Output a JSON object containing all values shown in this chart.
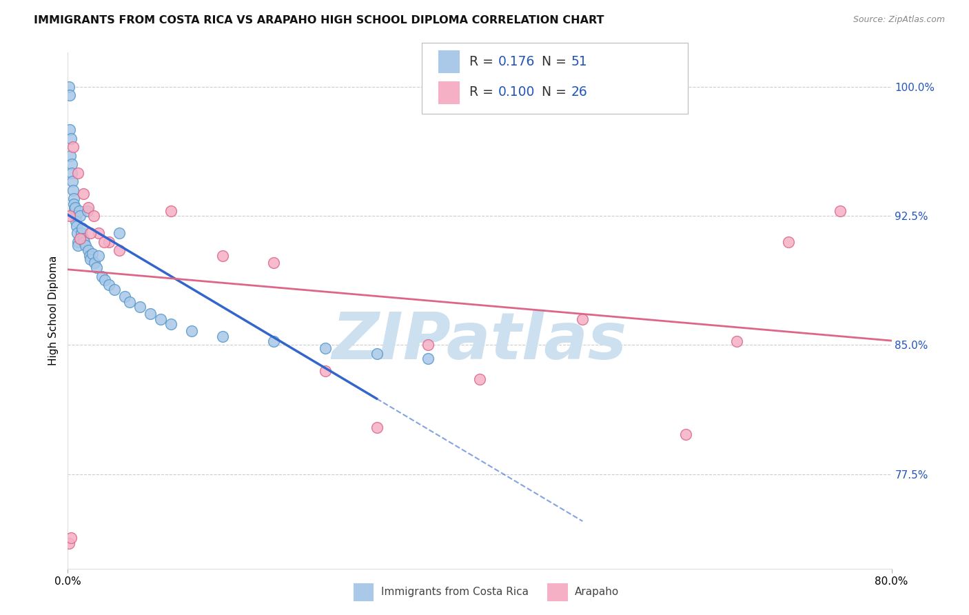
{
  "title": "IMMIGRANTS FROM COSTA RICA VS ARAPAHO HIGH SCHOOL DIPLOMA CORRELATION CHART",
  "source": "Source: ZipAtlas.com",
  "ylabel": "High School Diploma",
  "right_yticks": [
    100.0,
    92.5,
    85.0,
    77.5
  ],
  "xmin": 0.0,
  "xmax": 80.0,
  "ymin": 72.0,
  "ymax": 102.0,
  "blue_r": 0.176,
  "blue_n": 51,
  "pink_r": 0.1,
  "pink_n": 26,
  "blue_x": [
    0.1,
    0.15,
    0.2,
    0.25,
    0.3,
    0.35,
    0.4,
    0.45,
    0.5,
    0.55,
    0.6,
    0.65,
    0.7,
    0.75,
    0.8,
    0.85,
    0.9,
    0.95,
    1.0,
    1.1,
    1.2,
    1.3,
    1.4,
    1.5,
    1.6,
    1.7,
    1.9,
    2.0,
    2.1,
    2.2,
    2.4,
    2.6,
    2.8,
    3.0,
    3.3,
    3.6,
    4.0,
    4.5,
    5.0,
    5.5,
    6.0,
    7.0,
    8.0,
    9.0,
    10.0,
    12.0,
    15.0,
    20.0,
    25.0,
    30.0,
    35.0
  ],
  "blue_y": [
    100.0,
    97.5,
    99.5,
    96.0,
    97.0,
    95.5,
    95.0,
    94.5,
    94.0,
    93.5,
    93.2,
    92.9,
    93.0,
    92.5,
    92.2,
    91.9,
    91.5,
    91.0,
    90.8,
    92.8,
    92.5,
    91.5,
    91.8,
    91.2,
    91.0,
    90.8,
    92.8,
    90.5,
    90.2,
    90.0,
    90.3,
    89.8,
    89.5,
    90.2,
    89.0,
    88.8,
    88.5,
    88.2,
    91.5,
    87.8,
    87.5,
    87.2,
    86.8,
    86.5,
    86.2,
    85.8,
    85.5,
    85.2,
    84.8,
    84.5,
    84.2
  ],
  "pink_x": [
    0.1,
    0.3,
    0.5,
    1.0,
    1.5,
    2.0,
    2.5,
    3.0,
    4.0,
    5.0,
    10.0,
    15.0,
    20.0,
    25.0,
    30.0,
    35.0,
    40.0,
    50.0,
    60.0,
    65.0,
    70.0,
    75.0,
    0.2,
    1.2,
    2.2,
    3.5
  ],
  "pink_y": [
    73.5,
    73.8,
    96.5,
    95.0,
    93.8,
    93.0,
    92.5,
    91.5,
    91.0,
    90.5,
    92.8,
    90.2,
    89.8,
    83.5,
    80.2,
    85.0,
    83.0,
    86.5,
    79.8,
    85.2,
    91.0,
    92.8,
    92.5,
    91.2,
    91.5,
    91.0
  ],
  "blue_line_x0": 0.0,
  "blue_line_x1": 80.0,
  "blue_solid_x1": 30.0,
  "pink_line_x0": 0.0,
  "pink_line_x1": 80.0,
  "blue_color": "#aac8e8",
  "blue_edge": "#5599cc",
  "pink_color": "#f5b0c5",
  "pink_edge": "#dd6688",
  "trend_blue": "#3366cc",
  "trend_pink": "#dd6688",
  "watermark_text": "ZIPatlas",
  "watermark_color": "#cce0f0",
  "bg_color": "#ffffff",
  "grid_color": "#cccccc",
  "legend_r_blue": "0.176",
  "legend_n_blue": "51",
  "legend_r_pink": "0.100",
  "legend_n_pink": "26",
  "accent_color": "#2255bb"
}
